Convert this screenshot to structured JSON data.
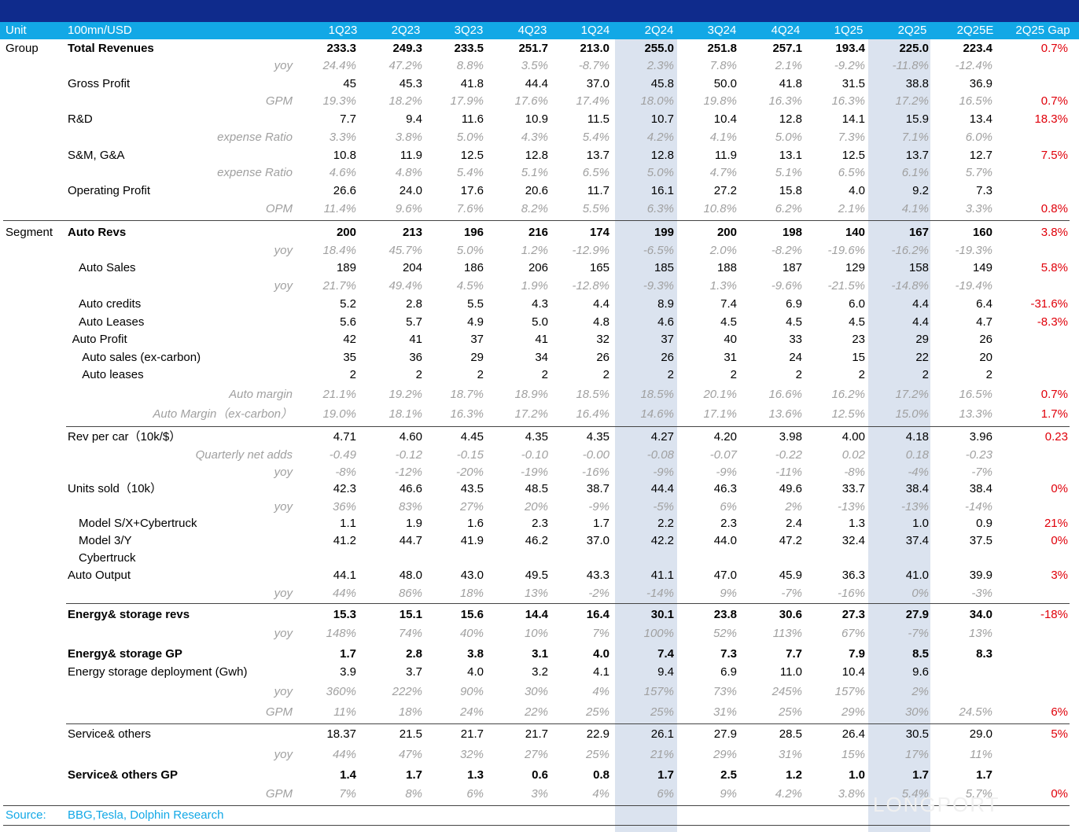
{
  "header": {
    "unit": "Unit",
    "currency": "100mn/USD",
    "quarters": [
      "1Q23",
      "2Q23",
      "3Q23",
      "4Q23",
      "1Q24",
      "2Q24",
      "3Q24",
      "4Q24",
      "1Q25",
      "2Q25",
      "2Q25E",
      "2Q25 Gap"
    ]
  },
  "rows": [
    {
      "group": "Group",
      "label": "Total Revenues",
      "style": "bold",
      "values": [
        "233.3",
        "249.3",
        "233.5",
        "251.7",
        "213.0",
        "255.0",
        "251.8",
        "257.1",
        "193.4",
        "225.0",
        "223.4"
      ],
      "gap": "0.7%"
    },
    {
      "label": "yoy",
      "style": "italic",
      "values": [
        "24.4%",
        "47.2%",
        "8.8%",
        "3.5%",
        "-8.7%",
        "2.3%",
        "7.8%",
        "2.1%",
        "-9.2%",
        "-11.8%",
        "-12.4%"
      ],
      "gap": ""
    },
    {
      "label": "Gross Profit",
      "style": "normal",
      "values": [
        "45",
        "45.3",
        "41.8",
        "44.4",
        "37.0",
        "45.8",
        "50.0",
        "41.8",
        "31.5",
        "38.8",
        "36.9"
      ],
      "gap": ""
    },
    {
      "label": "GPM",
      "style": "italic",
      "values": [
        "19.3%",
        "18.2%",
        "17.9%",
        "17.6%",
        "17.4%",
        "18.0%",
        "19.8%",
        "16.3%",
        "16.3%",
        "17.2%",
        "16.5%"
      ],
      "gap": "0.7%"
    },
    {
      "label": "R&D",
      "style": "normal",
      "values": [
        "7.7",
        "9.4",
        "11.6",
        "10.9",
        "11.5",
        "10.7",
        "10.4",
        "12.8",
        "14.1",
        "15.9",
        "13.4"
      ],
      "gap": "18.3%"
    },
    {
      "label": "expense Ratio",
      "style": "italic",
      "values": [
        "3.3%",
        "3.8%",
        "5.0%",
        "4.3%",
        "5.4%",
        "4.2%",
        "4.1%",
        "5.0%",
        "7.3%",
        "7.1%",
        "6.0%"
      ],
      "gap": ""
    },
    {
      "label": "S&M, G&A",
      "style": "normal",
      "values": [
        "10.8",
        "11.9",
        "12.5",
        "12.8",
        "13.7",
        "12.8",
        "11.9",
        "13.1",
        "12.5",
        "13.7",
        "12.7"
      ],
      "gap": "7.5%"
    },
    {
      "label": "expense Ratio",
      "style": "italic",
      "values": [
        "4.6%",
        "4.8%",
        "5.4%",
        "5.1%",
        "6.5%",
        "5.0%",
        "4.7%",
        "5.1%",
        "6.5%",
        "6.1%",
        "5.7%"
      ],
      "gap": ""
    },
    {
      "label": "Operating Profit",
      "style": "normal",
      "values": [
        "26.6",
        "24.0",
        "17.6",
        "20.6",
        "11.7",
        "16.1",
        "27.2",
        "15.8",
        "4.0",
        "9.2",
        "7.3"
      ],
      "gap": ""
    },
    {
      "label": "OPM",
      "style": "italic",
      "values": [
        "11.4%",
        "9.6%",
        "7.6%",
        "8.2%",
        "5.5%",
        "6.3%",
        "10.8%",
        "6.2%",
        "2.1%",
        "4.1%",
        "3.3%"
      ],
      "gap": "0.8%"
    },
    {
      "group": "Segment",
      "label": "Auto Revs",
      "style": "bold",
      "values": [
        "200",
        "213",
        "196",
        "216",
        "174",
        "199",
        "200",
        "198",
        "140",
        "167",
        "160"
      ],
      "gap": "3.8%"
    },
    {
      "label": "yoy",
      "style": "italic",
      "values": [
        "18.4%",
        "45.7%",
        "5.0%",
        "1.2%",
        "-12.9%",
        "-6.5%",
        "2.0%",
        "-8.2%",
        "-19.6%",
        "-16.2%",
        "-19.3%"
      ],
      "gap": ""
    },
    {
      "label": "Auto Sales",
      "style": "normal",
      "indent": 1,
      "values": [
        "189",
        "204",
        "186",
        "206",
        "165",
        "185",
        "188",
        "187",
        "129",
        "158",
        "149"
      ],
      "gap": "5.8%"
    },
    {
      "label": "yoy",
      "style": "italic",
      "values": [
        "21.7%",
        "49.4%",
        "4.5%",
        "1.9%",
        "-12.8%",
        "-9.3%",
        "1.3%",
        "-9.6%",
        "-21.5%",
        "-14.8%",
        "-19.4%"
      ],
      "gap": ""
    },
    {
      "label": "Auto credits",
      "style": "normal",
      "indent": 1,
      "values": [
        "5.2",
        "2.8",
        "5.5",
        "4.3",
        "4.4",
        "8.9",
        "7.4",
        "6.9",
        "6.0",
        "4.4",
        "6.4"
      ],
      "gap": "-31.6%"
    },
    {
      "label": "Auto Leases",
      "style": "normal",
      "indent": 1,
      "values": [
        "5.6",
        "5.7",
        "4.9",
        "5.0",
        "4.8",
        "4.6",
        "4.5",
        "4.5",
        "4.5",
        "4.4",
        "4.7"
      ],
      "gap": "-8.3%"
    },
    {
      "label": "Auto Profit",
      "style": "normal",
      "indent": 0.4,
      "values": [
        "42",
        "41",
        "37",
        "41",
        "32",
        "37",
        "40",
        "33",
        "23",
        "29",
        "26"
      ],
      "gap": ""
    },
    {
      "label": "Auto sales (ex-carbon)",
      "style": "normal",
      "indent": 1.3,
      "values": [
        "35",
        "36",
        "29",
        "34",
        "26",
        "26",
        "31",
        "24",
        "15",
        "22",
        "20"
      ],
      "gap": ""
    },
    {
      "label": "Auto leases",
      "style": "normal",
      "indent": 1.3,
      "values": [
        "2",
        "2",
        "2",
        "2",
        "2",
        "2",
        "2",
        "2",
        "2",
        "2",
        "2"
      ],
      "gap": ""
    },
    {
      "label": "Auto margin",
      "style": "italic",
      "values": [
        "21.1%",
        "19.2%",
        "18.7%",
        "18.9%",
        "18.5%",
        "18.5%",
        "20.1%",
        "16.6%",
        "16.2%",
        "17.2%",
        "16.5%"
      ],
      "gap": "0.7%"
    },
    {
      "label": "Auto Margin（ex-carbon）",
      "style": "italic",
      "values": [
        "19.0%",
        "18.1%",
        "16.3%",
        "17.2%",
        "16.4%",
        "14.6%",
        "17.1%",
        "13.6%",
        "12.5%",
        "15.0%",
        "13.3%"
      ],
      "gap": "1.7%"
    },
    {
      "label": "Rev per car（10k/$）",
      "style": "normal",
      "values": [
        "4.71",
        "4.60",
        "4.45",
        "4.35",
        "4.35",
        "4.27",
        "4.20",
        "3.98",
        "4.00",
        "4.18",
        "3.96"
      ],
      "gap": "0.23"
    },
    {
      "label": "Quarterly net adds",
      "style": "italic",
      "values": [
        "-0.49",
        "-0.12",
        "-0.15",
        "-0.10",
        "-0.00",
        "-0.08",
        "-0.07",
        "-0.22",
        "0.02",
        "0.18",
        "-0.23"
      ],
      "gap": ""
    },
    {
      "label": "yoy",
      "style": "italic",
      "values": [
        "-8%",
        "-12%",
        "-20%",
        "-19%",
        "-16%",
        "-9%",
        "-9%",
        "-11%",
        "-8%",
        "-4%",
        "-7%"
      ],
      "gap": ""
    },
    {
      "label": "Units sold（10k）",
      "style": "normal",
      "values": [
        "42.3",
        "46.6",
        "43.5",
        "48.5",
        "38.7",
        "44.4",
        "46.3",
        "49.6",
        "33.7",
        "38.4",
        "38.4"
      ],
      "gap": "0%"
    },
    {
      "label": "yoy",
      "style": "italic",
      "values": [
        "36%",
        "83%",
        "27%",
        "20%",
        "-9%",
        "-5%",
        "6%",
        "2%",
        "-13%",
        "-13%",
        "-14%"
      ],
      "gap": ""
    },
    {
      "label": "Model S/X+Cybertruck",
      "style": "normal",
      "indent": 1,
      "values": [
        "1.1",
        "1.9",
        "1.6",
        "2.3",
        "1.7",
        "2.2",
        "2.3",
        "2.4",
        "1.3",
        "1.0",
        "0.9"
      ],
      "gap": "21%"
    },
    {
      "label": "Model 3/Y",
      "style": "normal",
      "indent": 1,
      "values": [
        "41.2",
        "44.7",
        "41.9",
        "46.2",
        "37.0",
        "42.2",
        "44.0",
        "47.2",
        "32.4",
        "37.4",
        "37.5"
      ],
      "gap": "0%"
    },
    {
      "label": "Cybertruck",
      "style": "normal",
      "indent": 1,
      "values": [
        "",
        "",
        "",
        "",
        "",
        "",
        "",
        "",
        "",
        "",
        ""
      ],
      "gap": ""
    },
    {
      "label": "Auto Output",
      "style": "normal",
      "values": [
        "44.1",
        "48.0",
        "43.0",
        "49.5",
        "43.3",
        "41.1",
        "47.0",
        "45.9",
        "36.3",
        "41.0",
        "39.9"
      ],
      "gap": "3%"
    },
    {
      "label": "yoy",
      "style": "italic",
      "values": [
        "44%",
        "86%",
        "18%",
        "13%",
        "-2%",
        "-14%",
        "9%",
        "-7%",
        "-16%",
        "0%",
        "-3%"
      ],
      "gap": ""
    },
    {
      "label": "Energy& storage revs",
      "style": "bold",
      "values": [
        "15.3",
        "15.1",
        "15.6",
        "14.4",
        "16.4",
        "30.1",
        "23.8",
        "30.6",
        "27.3",
        "27.9",
        "34.0"
      ],
      "gap": "-18%"
    },
    {
      "label": "yoy",
      "style": "italic",
      "values": [
        "148%",
        "74%",
        "40%",
        "10%",
        "7%",
        "100%",
        "52%",
        "113%",
        "67%",
        "-7%",
        "13%"
      ],
      "gap": ""
    },
    {
      "label": "Energy& storage GP",
      "style": "bold",
      "values": [
        "1.7",
        "2.8",
        "3.8",
        "3.1",
        "4.0",
        "7.4",
        "7.3",
        "7.7",
        "7.9",
        "8.5",
        "8.3"
      ],
      "gap": ""
    },
    {
      "label": "Energy storage deployment (Gwh)",
      "style": "normal",
      "values": [
        "3.9",
        "3.7",
        "4.0",
        "3.2",
        "4.1",
        "9.4",
        "6.9",
        "11.0",
        "10.4",
        "9.6",
        ""
      ],
      "gap": ""
    },
    {
      "label": "yoy",
      "style": "italic",
      "values": [
        "360%",
        "222%",
        "90%",
        "30%",
        "4%",
        "157%",
        "73%",
        "245%",
        "157%",
        "2%",
        ""
      ],
      "gap": ""
    },
    {
      "label": "GPM",
      "style": "italic",
      "values": [
        "11%",
        "18%",
        "24%",
        "22%",
        "25%",
        "25%",
        "31%",
        "25%",
        "29%",
        "30%",
        "24.5%"
      ],
      "gap": "6%"
    },
    {
      "label": "Service& others",
      "style": "normal",
      "values": [
        "18.37",
        "21.5",
        "21.7",
        "21.7",
        "22.9",
        "26.1",
        "27.9",
        "28.5",
        "26.4",
        "30.5",
        "29.0"
      ],
      "gap": "5%"
    },
    {
      "label": "yoy",
      "style": "italic",
      "values": [
        "44%",
        "47%",
        "32%",
        "27%",
        "25%",
        "21%",
        "29%",
        "31%",
        "15%",
        "17%",
        "11%"
      ],
      "gap": ""
    },
    {
      "label": "Service& others GP",
      "style": "bold",
      "values": [
        "1.4",
        "1.7",
        "1.3",
        "0.6",
        "0.8",
        "1.7",
        "2.5",
        "1.2",
        "1.0",
        "1.7",
        "1.7"
      ],
      "gap": ""
    },
    {
      "label": "GPM",
      "style": "italic",
      "values": [
        "7%",
        "8%",
        "6%",
        "3%",
        "4%",
        "6%",
        "9%",
        "4.2%",
        "3.8%",
        "5.4%",
        "5.7%"
      ],
      "gap": "0%"
    }
  ],
  "source": {
    "label": "Source:",
    "text": "BBG,Tesla,  Dolphin Research"
  },
  "watermark": "LONGPORT"
}
